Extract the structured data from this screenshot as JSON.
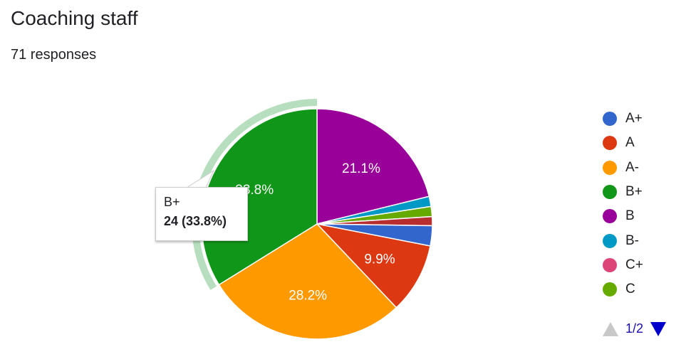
{
  "title": "Coaching staff",
  "responses": "71 responses",
  "chart_data": {
    "type": "pie",
    "categories": [
      "A+",
      "A",
      "A-",
      "B+",
      "B",
      "B-",
      "C+",
      "C"
    ],
    "values": [
      2,
      7,
      20,
      24,
      15,
      1,
      0,
      1
    ],
    "percent_labels": [
      "",
      "9.9%",
      "28.2%",
      "33.8%",
      "21.1%",
      "",
      "",
      ""
    ],
    "colors": [
      "#3366cc",
      "#dc3912",
      "#ff9900",
      "#109618",
      "#990099",
      "#0099c6",
      "#dd4477",
      "#66aa00"
    ],
    "extra_small_slice_color": "#b82e2e",
    "highlighted": "B+",
    "legend_position": "right"
  },
  "tooltip": {
    "label": "B+",
    "value": "24 (33.8%)"
  },
  "pager": {
    "text": "1/2"
  }
}
